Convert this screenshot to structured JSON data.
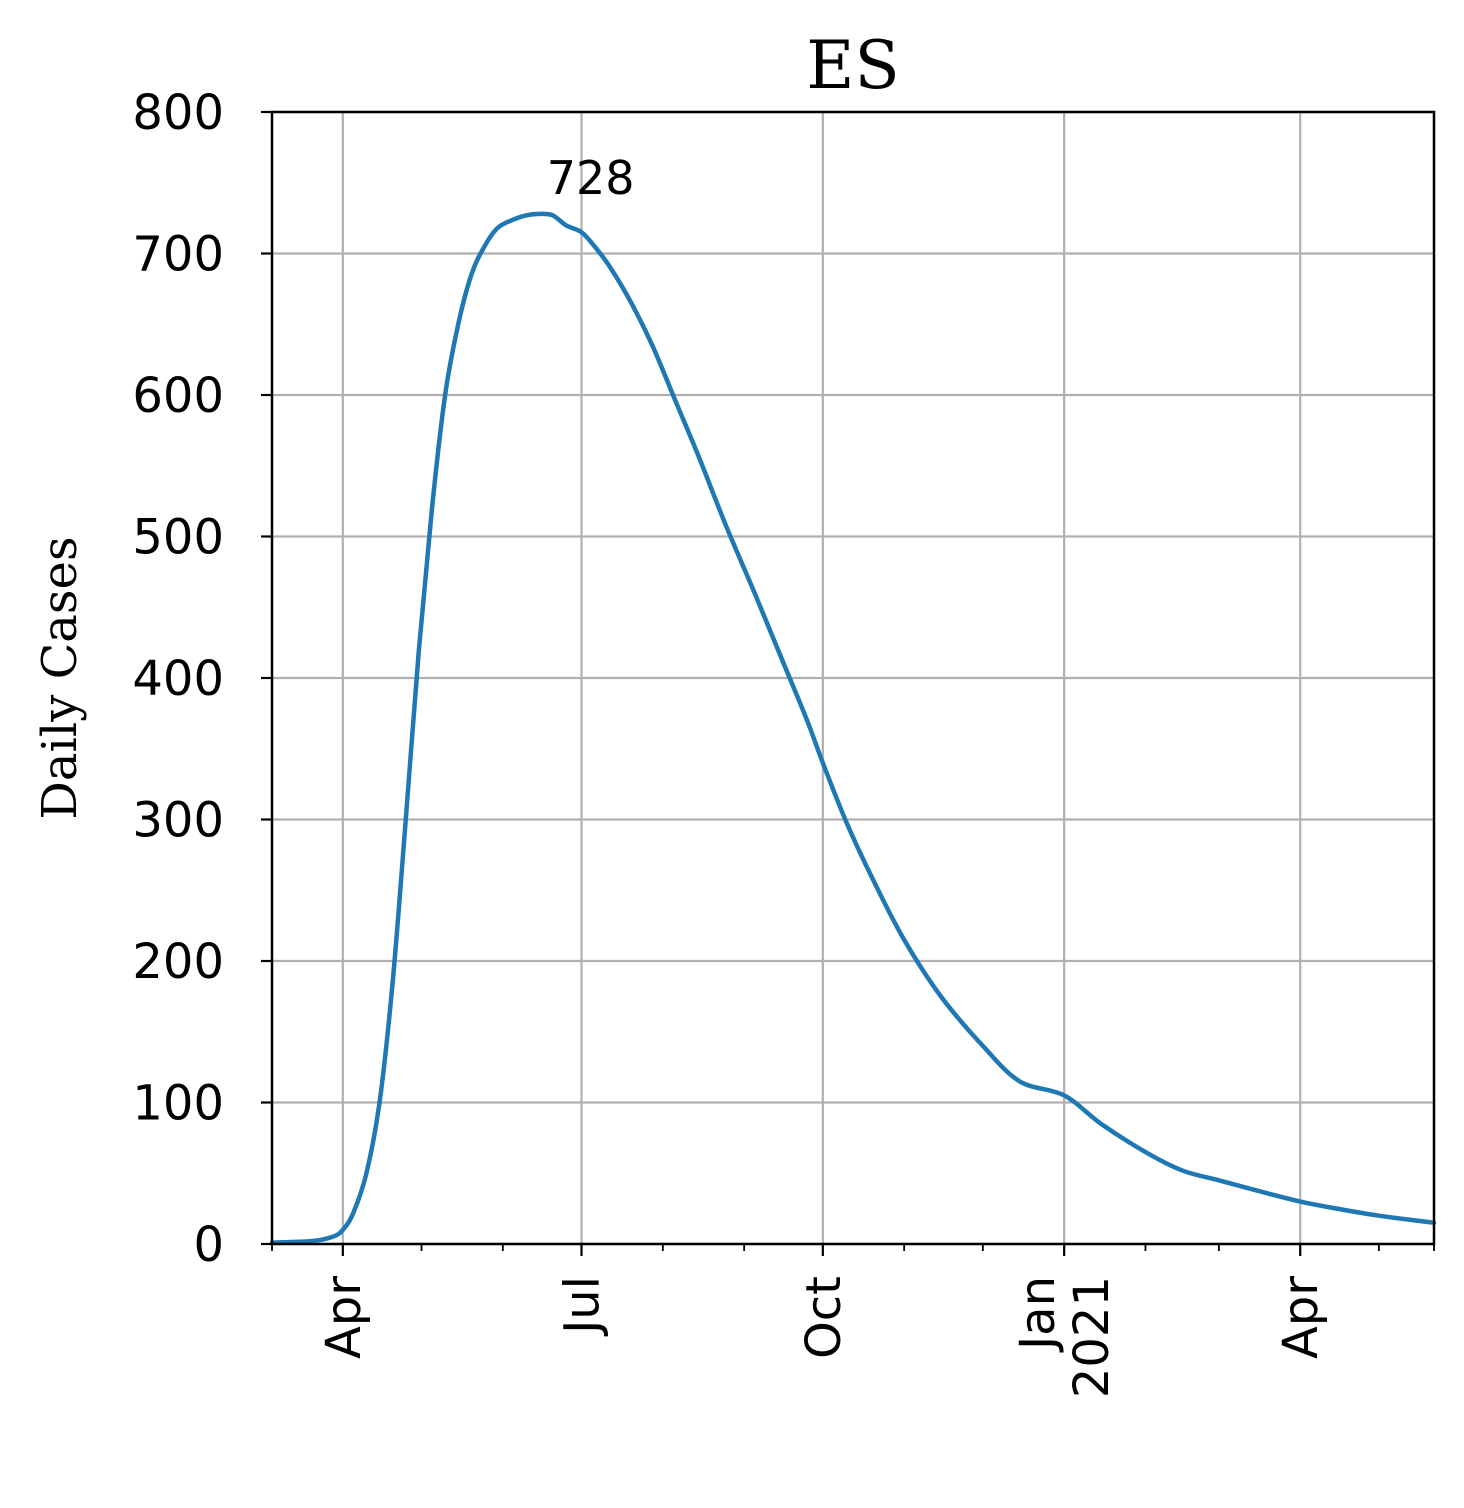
{
  "chart_data": {
    "type": "line",
    "title": "ES",
    "xlabel": "",
    "ylabel": "Daily Cases",
    "ylim": [
      0,
      800
    ],
    "xlim": [
      "2020-03-05",
      "2021-05-22"
    ],
    "yticks": [
      0,
      100,
      200,
      300,
      400,
      500,
      600,
      700,
      800
    ],
    "xticks": [
      {
        "date": "2020-04-01",
        "lines": [
          "Apr"
        ]
      },
      {
        "date": "2020-07-01",
        "lines": [
          "Jul"
        ]
      },
      {
        "date": "2020-10-01",
        "lines": [
          "Oct"
        ]
      },
      {
        "date": "2021-01-01",
        "lines": [
          "Jan",
          "2021"
        ]
      },
      {
        "date": "2021-04-01",
        "lines": [
          "Apr"
        ]
      }
    ],
    "minor_xticks": [
      "2020-03-05",
      "2020-05-01",
      "2020-06-01",
      "2020-08-01",
      "2020-09-01",
      "2020-11-01",
      "2020-12-01",
      "2021-02-01",
      "2021-03-01",
      "2021-05-01",
      "2021-05-22"
    ],
    "grid": true,
    "series": [
      {
        "color": "#1f77b4",
        "x": [
          "2020-03-05",
          "2020-03-20",
          "2020-03-28",
          "2020-04-01",
          "2020-04-05",
          "2020-04-10",
          "2020-04-15",
          "2020-04-20",
          "2020-04-25",
          "2020-04-30",
          "2020-05-05",
          "2020-05-10",
          "2020-05-15",
          "2020-05-20",
          "2020-05-25",
          "2020-05-30",
          "2020-06-05",
          "2020-06-10",
          "2020-06-15",
          "2020-06-20",
          "2020-06-25",
          "2020-07-01",
          "2020-07-06",
          "2020-07-12",
          "2020-07-20",
          "2020-07-28",
          "2020-08-06",
          "2020-08-15",
          "2020-08-25",
          "2020-09-05",
          "2020-09-15",
          "2020-09-25",
          "2020-10-01",
          "2020-10-10",
          "2020-10-20",
          "2020-11-01",
          "2020-11-15",
          "2020-12-01",
          "2020-12-15",
          "2021-01-01",
          "2021-01-15",
          "2021-02-01",
          "2021-02-15",
          "2021-03-01",
          "2021-03-15",
          "2021-04-01",
          "2021-04-15",
          "2021-05-01",
          "2021-05-22"
        ],
        "y": [
          1,
          2,
          5,
          10,
          22,
          50,
          100,
          185,
          300,
          420,
          520,
          600,
          650,
          685,
          705,
          718,
          724,
          727,
          728,
          727,
          720,
          715,
          705,
          690,
          665,
          635,
          595,
          555,
          508,
          460,
          415,
          370,
          340,
          298,
          258,
          215,
          175,
          140,
          115,
          105,
          85,
          65,
          52,
          45,
          38,
          30,
          25,
          20,
          15
        ]
      }
    ],
    "annotations": [
      {
        "text": "728",
        "x": "2020-07-06",
        "y": 728
      }
    ]
  }
}
